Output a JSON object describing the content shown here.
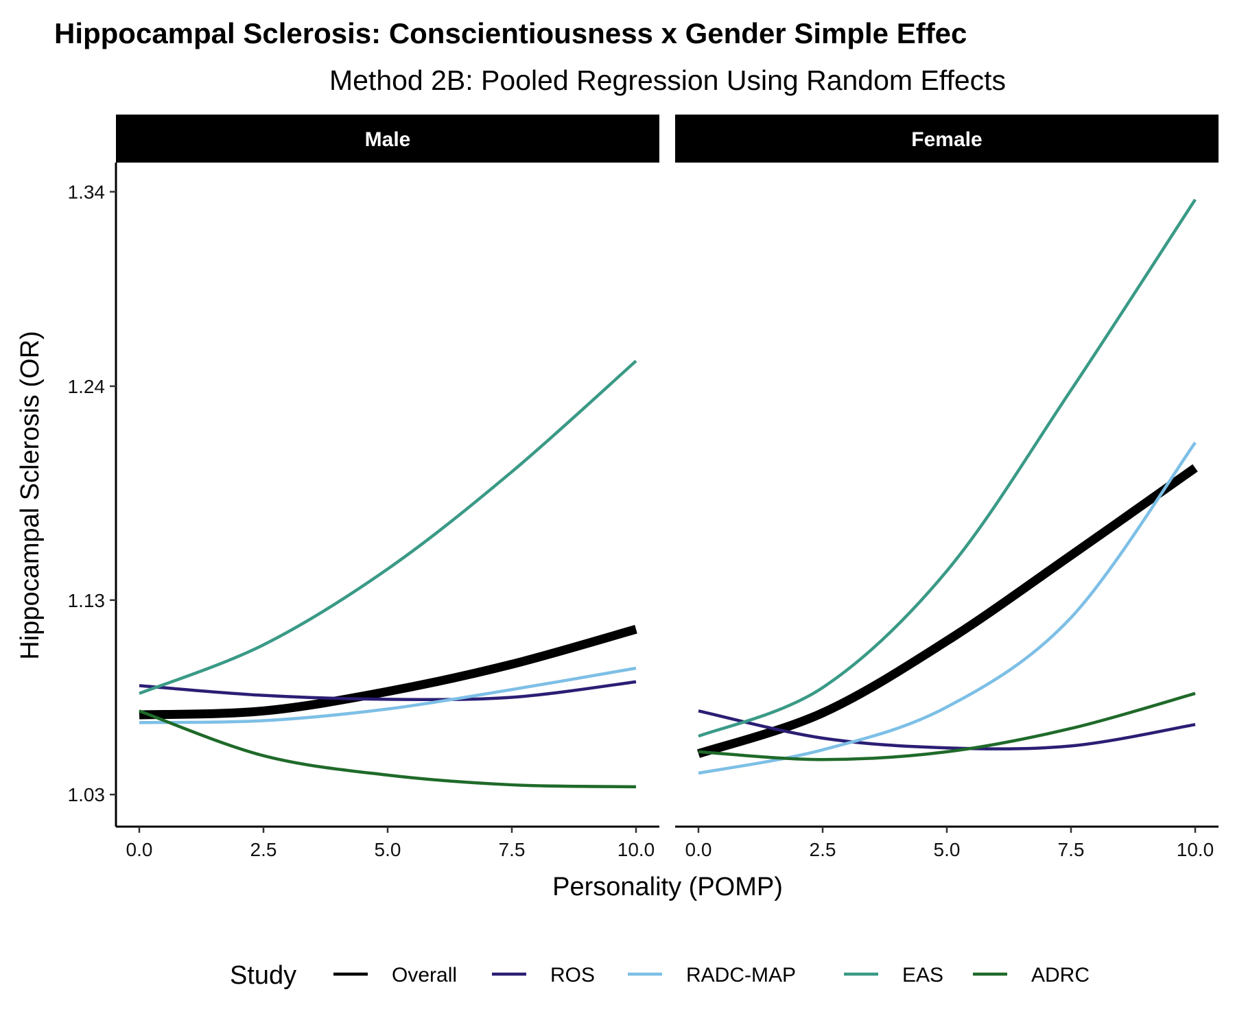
{
  "title": "Hippocampal Sclerosis: Conscientiousness x Gender Simple Effec",
  "subtitle": "Method 2B: Pooled Regression Using Random Effects",
  "legend_title": "Study",
  "colors": {
    "Overall": "#000000",
    "ROS": "#2a1e74",
    "RADC-MAP": "#7dbfe6",
    "EAS": "#3a9a86",
    "ADRC": "#1f6a2a"
  },
  "chart_data": {
    "type": "line",
    "xlabel": "Personality (POMP)",
    "ylabel": "Hippocampal Sclerosis (OR)",
    "xlim": [
      0,
      10
    ],
    "ylim": [
      1.0135,
      1.355
    ],
    "x_ticks": [
      "0.0",
      "2.5",
      "5.0",
      "7.5",
      "10.0"
    ],
    "y_ticks": [
      "1.03",
      "1.13",
      "1.24",
      "1.34"
    ],
    "y_tick_values": [
      1.03,
      1.13,
      1.24,
      1.34
    ],
    "panels": [
      {
        "name": "Male",
        "series": [
          {
            "name": "Overall",
            "x": [
              0,
              2.5,
              5,
              7.5,
              10
            ],
            "y": [
              1.071,
              1.073,
              1.083,
              1.097,
              1.115
            ]
          },
          {
            "name": "ROS",
            "x": [
              0,
              2.5,
              5,
              7.5,
              10
            ],
            "y": [
              1.086,
              1.081,
              1.079,
              1.08,
              1.088
            ]
          },
          {
            "name": "RADC-MAP",
            "x": [
              0,
              2.5,
              5,
              7.5,
              10
            ],
            "y": [
              1.067,
              1.068,
              1.074,
              1.084,
              1.095
            ]
          },
          {
            "name": "EAS",
            "x": [
              0,
              2.5,
              5,
              7.5,
              10
            ],
            "y": [
              1.082,
              1.107,
              1.146,
              1.196,
              1.253
            ]
          },
          {
            "name": "ADRC",
            "x": [
              0,
              2.5,
              5,
              7.5,
              10
            ],
            "y": [
              1.073,
              1.05,
              1.04,
              1.035,
              1.034
            ]
          }
        ]
      },
      {
        "name": "Female",
        "series": [
          {
            "name": "Overall",
            "x": [
              0,
              2.5,
              5,
              7.5,
              10
            ],
            "y": [
              1.051,
              1.072,
              1.109,
              1.153,
              1.198
            ]
          },
          {
            "name": "ROS",
            "x": [
              0,
              2.5,
              5,
              7.5,
              10
            ],
            "y": [
              1.073,
              1.059,
              1.054,
              1.055,
              1.066
            ]
          },
          {
            "name": "RADC-MAP",
            "x": [
              0,
              2.5,
              5,
              7.5,
              10
            ],
            "y": [
              1.041,
              1.053,
              1.075,
              1.121,
              1.211
            ]
          },
          {
            "name": "EAS",
            "x": [
              0,
              2.5,
              5,
              7.5,
              10
            ],
            "y": [
              1.06,
              1.085,
              1.145,
              1.238,
              1.336
            ]
          },
          {
            "name": "ADRC",
            "x": [
              0,
              2.5,
              5,
              7.5,
              10
            ],
            "y": [
              1.052,
              1.048,
              1.052,
              1.064,
              1.082
            ]
          }
        ]
      }
    ],
    "legend": [
      "Overall",
      "ROS",
      "RADC-MAP",
      "EAS",
      "ADRC"
    ],
    "legend_position": "bottom",
    "grid": false
  }
}
